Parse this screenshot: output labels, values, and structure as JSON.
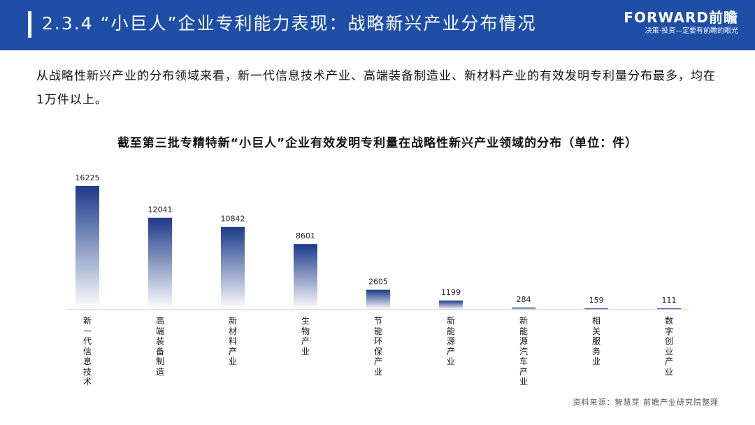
{
  "header": {
    "title": "2.3.4 “小巨人”企业专利能力表现：战略新兴产业分布情况",
    "brand_name": "FORWARD前瞻",
    "brand_tagline": "决策·投资—定要有前瞻的眼光"
  },
  "intro_text": "从战略性新兴产业的分布领域来看，新一代信息技术产业、高端装备制造业、新材料产业的有效发明专利量分布最多，均在1万件以上。",
  "source": "资料来源：智慧芽 前瞻产业研究院整理",
  "colors": {
    "header": "#1f4ea6",
    "bar_top": "#1b3a8a",
    "bar_bottom": "#ffffff"
  },
  "chart_data": {
    "type": "bar",
    "title": "截至第三批专精特新“小巨人”企业有效发明专利量在战略性新兴产业领域的分布（单位：件）",
    "categories": [
      "新一代信息技术",
      "高端装备制造",
      "新材料产业",
      "生物产业",
      "节能环保产业",
      "新能源产业",
      "新能源汽车产业",
      "相关服务业",
      "数字创业产业"
    ],
    "values": [
      16225,
      12041,
      10842,
      8601,
      2605,
      1199,
      284,
      159,
      111
    ],
    "xlabel": "",
    "ylabel": "",
    "ylim": [
      0,
      16225
    ],
    "grid": false,
    "legend": "none"
  }
}
